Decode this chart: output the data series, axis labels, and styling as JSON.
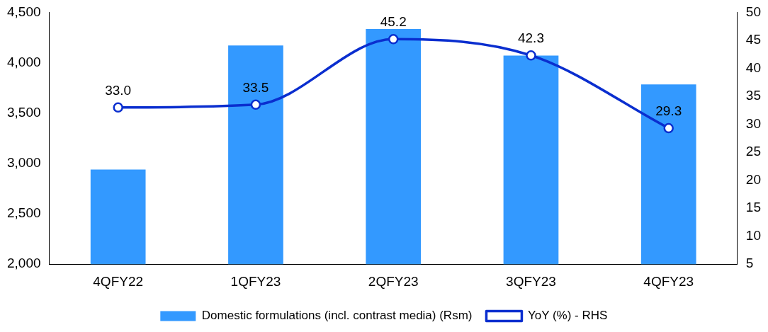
{
  "chart_data": {
    "type": "bar",
    "categories": [
      "4QFY22",
      "1QFY23",
      "2QFY23",
      "3QFY23",
      "4QFY23"
    ],
    "series": [
      {
        "name": "Domestic formulations (incl. contrast media) (Rsm)",
        "color": "#3399ff",
        "values": [
          2940,
          4170,
          4335,
          4070,
          3785
        ]
      },
      {
        "name": "YoY (%) - RHS",
        "type": "line",
        "axis": "y2",
        "color": "#0a2ecf",
        "values": [
          33.0,
          33.5,
          45.2,
          42.3,
          29.3
        ],
        "value_labels": [
          "33.0",
          "33.5",
          "45.2",
          "42.3",
          "29.3"
        ]
      }
    ],
    "ylim": [
      2000,
      4500
    ],
    "yticks": [
      {
        "value": 2000,
        "label": "2,000"
      },
      {
        "value": 2500,
        "label": "2,500"
      },
      {
        "value": 3000,
        "label": "3,000"
      },
      {
        "value": 3500,
        "label": "3,500"
      },
      {
        "value": 4000,
        "label": "4,000"
      },
      {
        "value": 4500,
        "label": "4,500"
      }
    ],
    "y2lim": [
      5,
      50
    ],
    "y2ticks": [
      5,
      10,
      15,
      20,
      25,
      30,
      35,
      40,
      45,
      50
    ],
    "grid": false,
    "legend": "bottom",
    "marker": "circle",
    "line_style": "solid"
  }
}
